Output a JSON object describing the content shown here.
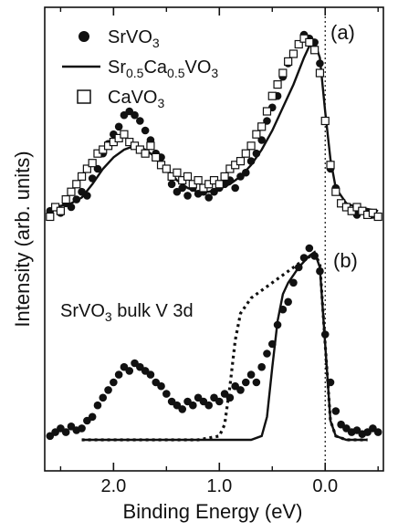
{
  "chart_data": {
    "type": "scatter",
    "xlabel": "Binding Energy (eV)",
    "ylabel": "Intensity (arb. units)",
    "x_reversed": true,
    "xlim": [
      2.65,
      -0.55
    ],
    "x_ticks": [
      2.0,
      1.0,
      0.0
    ],
    "x_tick_labels": [
      "2.0",
      "1.0",
      "0.0"
    ],
    "y_unit": "arbitrary",
    "fermi_level_dashed_line_at": 0.0,
    "panels": [
      {
        "label": "(a)",
        "legend": [
          {
            "marker": "filled-circle",
            "base": "SrVO",
            "sub": "3"
          },
          {
            "marker": "solid-line",
            "parts": [
              [
                "Sr",
                ""
              ],
              [
                "0.5",
                "sub"
              ],
              [
                "Ca",
                ""
              ],
              [
                "0.5",
                "sub"
              ],
              [
                "VO",
                ""
              ],
              [
                "3",
                "sub"
              ]
            ]
          },
          {
            "marker": "open-square",
            "base": "CaVO",
            "sub": "3"
          }
        ],
        "series": [
          {
            "name": "SrVO3",
            "style": "filled-circle",
            "x": [
              2.6,
              2.55,
              2.5,
              2.45,
              2.4,
              2.35,
              2.3,
              2.25,
              2.2,
              2.15,
              2.1,
              2.05,
              2.0,
              1.95,
              1.9,
              1.85,
              1.8,
              1.75,
              1.7,
              1.65,
              1.6,
              1.55,
              1.5,
              1.45,
              1.4,
              1.35,
              1.3,
              1.25,
              1.2,
              1.15,
              1.1,
              1.05,
              1.0,
              0.95,
              0.9,
              0.85,
              0.8,
              0.75,
              0.7,
              0.65,
              0.6,
              0.55,
              0.5,
              0.45,
              0.4,
              0.35,
              0.3,
              0.25,
              0.2,
              0.15,
              0.1,
              0.05,
              0.0,
              -0.05,
              -0.1,
              -0.15,
              -0.2,
              -0.25,
              -0.3,
              -0.35,
              -0.4,
              -0.45,
              -0.5
            ],
            "y": [
              0.08,
              0.1,
              0.07,
              0.12,
              0.1,
              0.14,
              0.18,
              0.16,
              0.25,
              0.3,
              0.38,
              0.43,
              0.48,
              0.52,
              0.58,
              0.6,
              0.58,
              0.55,
              0.5,
              0.45,
              0.38,
              0.36,
              0.3,
              0.22,
              0.18,
              0.2,
              0.16,
              0.2,
              0.17,
              0.18,
              0.15,
              0.18,
              0.2,
              0.22,
              0.24,
              0.2,
              0.26,
              0.28,
              0.34,
              0.38,
              0.45,
              0.55,
              0.62,
              0.68,
              0.78,
              0.85,
              0.9,
              0.95,
              1.0,
              0.98,
              0.96,
              0.85,
              0.55,
              0.3,
              0.2,
              0.12,
              0.1,
              0.08,
              0.06,
              0.08,
              0.07,
              0.06,
              0.05
            ]
          },
          {
            "name": "Sr0.5Ca0.5VO3",
            "style": "solid-line",
            "x": [
              2.55,
              2.4,
              2.3,
              2.2,
              2.1,
              2.0,
              1.9,
              1.8,
              1.7,
              1.6,
              1.5,
              1.4,
              1.3,
              1.2,
              1.1,
              1.0,
              0.9,
              0.8,
              0.7,
              0.6,
              0.5,
              0.4,
              0.3,
              0.2,
              0.15,
              0.1,
              0.05,
              0.0,
              -0.05,
              -0.1,
              -0.2,
              -0.3,
              -0.4,
              -0.5
            ],
            "y": [
              0.1,
              0.12,
              0.15,
              0.22,
              0.3,
              0.36,
              0.4,
              0.42,
              0.4,
              0.36,
              0.3,
              0.24,
              0.2,
              0.18,
              0.18,
              0.2,
              0.22,
              0.26,
              0.32,
              0.4,
              0.5,
              0.62,
              0.74,
              0.88,
              0.94,
              0.96,
              0.88,
              0.6,
              0.35,
              0.2,
              0.12,
              0.1,
              0.09,
              0.08
            ]
          },
          {
            "name": "CaVO3",
            "style": "open-square",
            "x": [
              2.6,
              2.55,
              2.5,
              2.45,
              2.4,
              2.35,
              2.3,
              2.25,
              2.2,
              2.15,
              2.1,
              2.05,
              2.0,
              1.95,
              1.9,
              1.85,
              1.8,
              1.75,
              1.7,
              1.65,
              1.6,
              1.55,
              1.5,
              1.45,
              1.4,
              1.35,
              1.3,
              1.25,
              1.2,
              1.15,
              1.1,
              1.05,
              1.0,
              0.95,
              0.9,
              0.85,
              0.8,
              0.75,
              0.7,
              0.65,
              0.6,
              0.55,
              0.5,
              0.45,
              0.4,
              0.35,
              0.3,
              0.25,
              0.2,
              0.15,
              0.1,
              0.05,
              0.0,
              -0.05,
              -0.1,
              -0.15,
              -0.2,
              -0.25,
              -0.3,
              -0.35,
              -0.4,
              -0.45,
              -0.5
            ],
            "y": [
              0.05,
              0.1,
              0.08,
              0.14,
              0.18,
              0.22,
              0.26,
              0.3,
              0.33,
              0.38,
              0.4,
              0.42,
              0.44,
              0.46,
              0.48,
              0.44,
              0.42,
              0.4,
              0.38,
              0.42,
              0.36,
              0.32,
              0.3,
              0.26,
              0.28,
              0.24,
              0.26,
              0.22,
              0.24,
              0.2,
              0.22,
              0.24,
              0.22,
              0.26,
              0.3,
              0.32,
              0.34,
              0.38,
              0.42,
              0.48,
              0.52,
              0.6,
              0.68,
              0.74,
              0.8,
              0.86,
              0.9,
              0.95,
              0.98,
              0.96,
              0.92,
              0.8,
              0.55,
              0.32,
              0.18,
              0.12,
              0.1,
              0.08,
              0.1,
              0.08,
              0.06,
              0.07,
              0.05
            ]
          }
        ]
      },
      {
        "label": "(b)",
        "annotation": {
          "pre": "SrVO",
          "sub": "3",
          "post": " bulk V 3d"
        },
        "series": [
          {
            "style": "filled-circle",
            "x": [
              2.6,
              2.55,
              2.5,
              2.45,
              2.4,
              2.35,
              2.3,
              2.25,
              2.2,
              2.15,
              2.1,
              2.05,
              2.0,
              1.95,
              1.9,
              1.85,
              1.8,
              1.75,
              1.7,
              1.65,
              1.6,
              1.55,
              1.5,
              1.45,
              1.4,
              1.35,
              1.3,
              1.25,
              1.2,
              1.15,
              1.1,
              1.05,
              1.0,
              0.95,
              0.9,
              0.85,
              0.8,
              0.75,
              0.7,
              0.65,
              0.6,
              0.55,
              0.5,
              0.45,
              0.4,
              0.35,
              0.3,
              0.25,
              0.2,
              0.15,
              0.1,
              0.05,
              0.0,
              -0.05,
              -0.1,
              -0.15,
              -0.2,
              -0.25,
              -0.3,
              -0.35,
              -0.4,
              -0.45,
              -0.5
            ],
            "y": [
              0.02,
              0.04,
              0.06,
              0.04,
              0.07,
              0.05,
              0.06,
              0.1,
              0.12,
              0.18,
              0.22,
              0.26,
              0.3,
              0.34,
              0.38,
              0.36,
              0.4,
              0.38,
              0.36,
              0.34,
              0.3,
              0.28,
              0.24,
              0.2,
              0.18,
              0.16,
              0.2,
              0.18,
              0.22,
              0.2,
              0.18,
              0.22,
              0.2,
              0.24,
              0.22,
              0.28,
              0.26,
              0.3,
              0.34,
              0.3,
              0.38,
              0.45,
              0.5,
              0.6,
              0.68,
              0.72,
              0.82,
              0.9,
              0.95,
              1.0,
              0.96,
              0.88,
              0.55,
              0.3,
              0.15,
              0.08,
              0.06,
              0.04,
              0.05,
              0.03,
              0.04,
              0.06,
              0.04
            ]
          },
          {
            "style": "solid-line",
            "x": [
              2.3,
              2.0,
              1.5,
              1.0,
              0.8,
              0.7,
              0.6,
              0.55,
              0.5,
              0.45,
              0.4,
              0.35,
              0.3,
              0.25,
              0.2,
              0.15,
              0.1,
              0.05,
              0.0,
              -0.05,
              -0.1,
              -0.2,
              -0.4
            ],
            "y": [
              0.0,
              0.0,
              0.0,
              0.0,
              0.0,
              0.0,
              0.02,
              0.12,
              0.38,
              0.62,
              0.76,
              0.82,
              0.86,
              0.9,
              0.93,
              0.96,
              0.98,
              0.9,
              0.5,
              0.1,
              0.02,
              0.0,
              0.0
            ]
          },
          {
            "style": "dotted-line",
            "x": [
              2.3,
              2.0,
              1.5,
              1.2,
              1.0,
              0.95,
              0.9,
              0.85,
              0.8,
              0.7,
              0.6,
              0.5,
              0.4,
              0.3,
              0.2,
              0.1,
              0.05,
              0.0,
              -0.05,
              -0.1,
              -0.2,
              -0.4
            ],
            "y": [
              0.0,
              0.0,
              0.0,
              0.0,
              0.02,
              0.08,
              0.28,
              0.52,
              0.66,
              0.74,
              0.78,
              0.82,
              0.86,
              0.9,
              0.94,
              0.97,
              0.92,
              0.5,
              0.1,
              0.02,
              0.0,
              0.0
            ]
          }
        ]
      }
    ]
  }
}
